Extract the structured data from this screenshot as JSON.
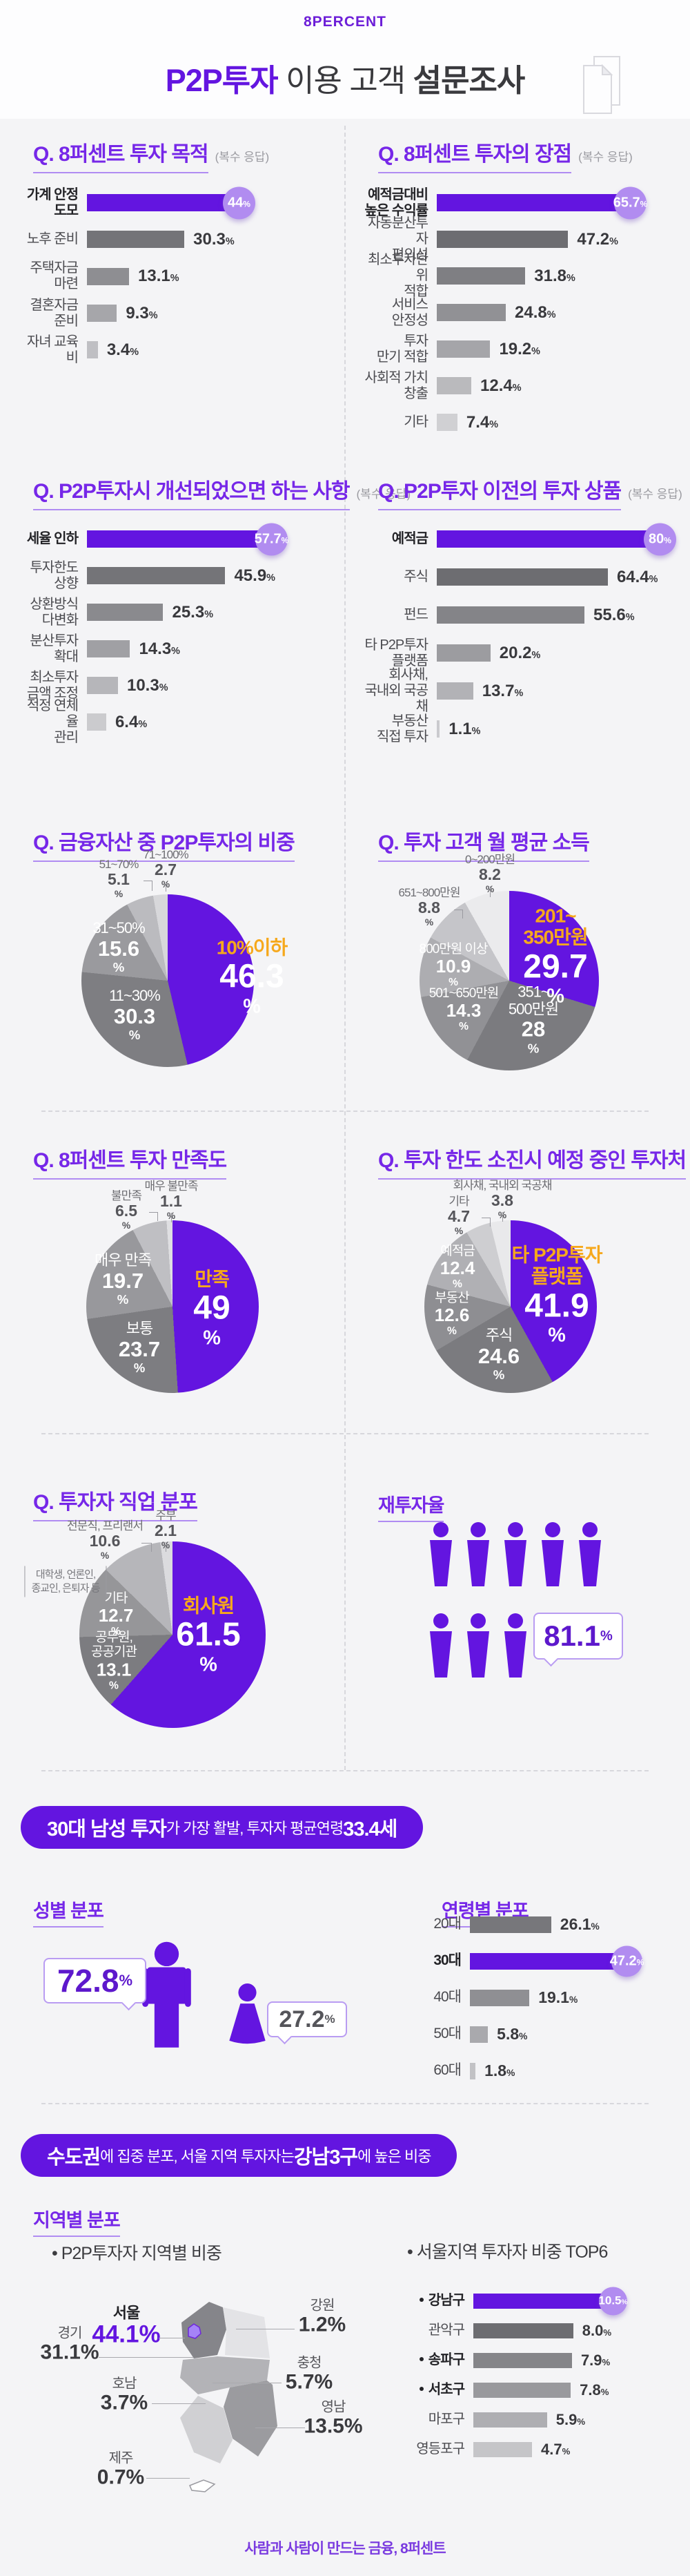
{
  "header": {
    "logo": "8PERCENT",
    "title_highlight": "P2P투자",
    "title_mid": " 이용 고객 ",
    "title_bold": "설문조사"
  },
  "chart_data": [
    {
      "id": "purpose",
      "type": "bar",
      "title": "Q. 8퍼센트 투자 목적",
      "note": "(복수 응답)",
      "categories": [
        "가계 안정\n도모",
        "노후 준비",
        "주택자금\n마련",
        "결혼자금\n준비",
        "자녀 교육비"
      ],
      "values": [
        44,
        30.3,
        13.1,
        9.3,
        3.4
      ],
      "displays": [
        "44",
        "30.3",
        "13.1",
        "9.3",
        "3.4"
      ],
      "highlight_index": 0
    },
    {
      "id": "advantage",
      "type": "bar",
      "title": "Q. 8퍼센트 투자의 장점",
      "note": "(복수 응답)",
      "categories": [
        "예적금대비\n높은 수익률",
        "자동분산투자\n편의성",
        "최소투자단위\n적합",
        "서비스\n안정성",
        "투자\n만기 적합",
        "사회적 가치\n창출",
        "기타"
      ],
      "values": [
        65.7,
        47.2,
        31.8,
        24.8,
        19.2,
        12.4,
        7.4
      ],
      "displays": [
        "65.7",
        "47.2",
        "31.8",
        "24.8",
        "19.2",
        "12.4",
        "7.4"
      ],
      "highlight_index": 0
    },
    {
      "id": "improve",
      "type": "bar",
      "title": "Q. P2P투자시 개선되었으면 하는 사항",
      "note": "(복수 응답)",
      "categories": [
        "세율 인하",
        "투자한도\n상향",
        "상환방식\n다변화",
        "분산투자\n확대",
        "최소투자\n금액 조정",
        "적정 연체율\n관리"
      ],
      "values": [
        57.7,
        45.9,
        25.3,
        14.3,
        10.3,
        6.4
      ],
      "displays": [
        "57.7",
        "45.9",
        "25.3",
        "14.3",
        "10.3",
        "6.4"
      ],
      "highlight_index": 0
    },
    {
      "id": "previous",
      "type": "bar",
      "title": "Q. P2P투자 이전의 투자 상품",
      "note": "(복수 응답)",
      "categories": [
        "예적금",
        "주식",
        "펀드",
        "타 P2P투자\n플랫폼",
        "회사채,\n국내외 국공채",
        "부동산\n직접 투자"
      ],
      "values": [
        80,
        64.4,
        55.6,
        20.2,
        13.7,
        1.1
      ],
      "displays": [
        "80",
        "64.4",
        "55.6",
        "20.2",
        "13.7",
        "1.1"
      ],
      "highlight_index": 0
    },
    {
      "id": "asset_share",
      "type": "pie",
      "title": "Q. 금융자산 중 P2P투자의 비중",
      "labels": [
        "10%이하",
        "11~30%",
        "31~50%",
        "51~70%",
        "71~100%"
      ],
      "values": [
        46.3,
        30.3,
        15.6,
        5.1,
        2.7
      ],
      "displays": [
        "46.3",
        "30.3",
        "15.6",
        "5.1",
        "2.7"
      ],
      "colors": [
        "#6315e0",
        "#7e7e82",
        "#9a9a9e",
        "#bbbbbf",
        "#d7d7da"
      ]
    },
    {
      "id": "income",
      "type": "pie",
      "title": "Q. 투자 고객 월 평균 소득",
      "labels": [
        "201~\n350만원",
        "351~\n500만원",
        "501~650만원",
        "800만원 이상",
        "651~800만원",
        "0~200만원"
      ],
      "values": [
        29.7,
        28,
        14.3,
        10.9,
        8.8,
        8.2
      ],
      "displays": [
        "29.7",
        "28",
        "14.3",
        "10.9",
        "8.8",
        "8.2"
      ],
      "colors": [
        "#6315e0",
        "#7b7b7f",
        "#919195",
        "#adadb1",
        "#c5c5c9",
        "#ebebed"
      ]
    },
    {
      "id": "satisfaction",
      "type": "pie",
      "title": "Q. 8퍼센트 투자 만족도",
      "labels": [
        "만족",
        "보통",
        "매우 만족",
        "불만족",
        "매우 불만족"
      ],
      "values": [
        49,
        23.7,
        19.7,
        6.5,
        1.1
      ],
      "displays": [
        "49",
        "23.7",
        "19.7",
        "6.5",
        "1.1"
      ],
      "colors": [
        "#6315e0",
        "#7d7d81",
        "#98989c",
        "#bfbfc3",
        "#dfdfe2"
      ]
    },
    {
      "id": "next_invest",
      "type": "pie",
      "title": "Q. 투자 한도 소진시 예정 중인 투자처",
      "labels": [
        "타 P2P투자\n플랫폼",
        "주식",
        "부동산",
        "예적금",
        "기타",
        "회사채, 국내외 국공채"
      ],
      "values": [
        41.9,
        24.6,
        12.6,
        12.4,
        4.7,
        3.8
      ],
      "displays": [
        "41.9",
        "24.6",
        "12.6",
        "12.4",
        "4.7",
        "3.8"
      ],
      "colors": [
        "#6315e0",
        "#7b7b7f",
        "#8e8e92",
        "#b0b0b4",
        "#ceced1",
        "#e9e9eb"
      ]
    },
    {
      "id": "occupation",
      "type": "pie",
      "title": "Q. 투자자 직업 분포",
      "labels": [
        "회사원",
        "공무원,\n공공기관",
        "기타",
        "전문직, 프리랜서",
        "주부"
      ],
      "values": [
        61.5,
        13.1,
        12.7,
        10.6,
        2.1
      ],
      "displays": [
        "61.5",
        "13.1",
        "12.7",
        "10.6",
        "2.1"
      ],
      "colors": [
        "#6315e0",
        "#7c7c80",
        "#969699",
        "#b6b6ba",
        "#dbdbde"
      ],
      "note": "대학생, 언론인,\n종교인, 은퇴자 등"
    },
    {
      "id": "reinvest",
      "type": "pictogram",
      "title": "재투자율",
      "value": 81.1,
      "display": "81.1",
      "icons_row1": 5,
      "icons_row2": 3
    },
    {
      "id": "gender",
      "type": "pictogram",
      "title": "성별 분포",
      "male_value": 72.8,
      "male_display": "72.8",
      "female_value": 27.2,
      "female_display": "27.2"
    },
    {
      "id": "age",
      "type": "bar",
      "title": "연령별 분포",
      "categories": [
        "20대",
        "30대",
        "40대",
        "50대",
        "60대"
      ],
      "values": [
        26.1,
        47.2,
        19.1,
        5.8,
        1.8
      ],
      "displays": [
        "26.1",
        "47.2",
        "19.1",
        "5.8",
        "1.8"
      ],
      "highlight_index": 1
    },
    {
      "id": "region",
      "type": "map",
      "title": "지역별 분포",
      "subtitle": "• P2P투자자 지역별 비중",
      "regions": [
        {
          "name": "서울",
          "display": "44.1%"
        },
        {
          "name": "경기",
          "display": "31.1%"
        },
        {
          "name": "강원",
          "display": "1.2%"
        },
        {
          "name": "충청",
          "display": "5.7%"
        },
        {
          "name": "호남",
          "display": "3.7%"
        },
        {
          "name": "영남",
          "display": "13.5%"
        },
        {
          "name": "제주",
          "display": "0.7%"
        }
      ]
    },
    {
      "id": "seoul_top6",
      "type": "bar",
      "subtitle": "• 서울지역 투자자 비중 TOP6",
      "categories": [
        "강남구",
        "관악구",
        "송파구",
        "서초구",
        "마포구",
        "영등포구"
      ],
      "values": [
        10.5,
        8.0,
        7.9,
        7.8,
        5.9,
        4.7
      ],
      "displays": [
        "10.5",
        "8.0",
        "7.9",
        "7.8",
        "5.9",
        "4.7"
      ],
      "bullets": [
        true,
        false,
        true,
        true,
        false,
        false
      ],
      "highlight_index": 0
    }
  ],
  "banners": {
    "activity": {
      "bold1": "30대 남성 투자",
      "text1": "가 가장 활발, 투자자 평균연령 ",
      "bold2": "33.4세"
    },
    "location": {
      "bold1": "수도권",
      "text1": "에 집중 분포, 서울 지역 투자자는 ",
      "bold2": "강남3구",
      "text2": "에 높은 비중"
    }
  },
  "footer": {
    "text": "사람과 사람이 만드는 금융, 8퍼센트"
  },
  "colors": {
    "primary": "#6315e0",
    "badge": "#b18cf0",
    "accent_text": "#f6a81c",
    "banner_bg": "#6315e0"
  }
}
